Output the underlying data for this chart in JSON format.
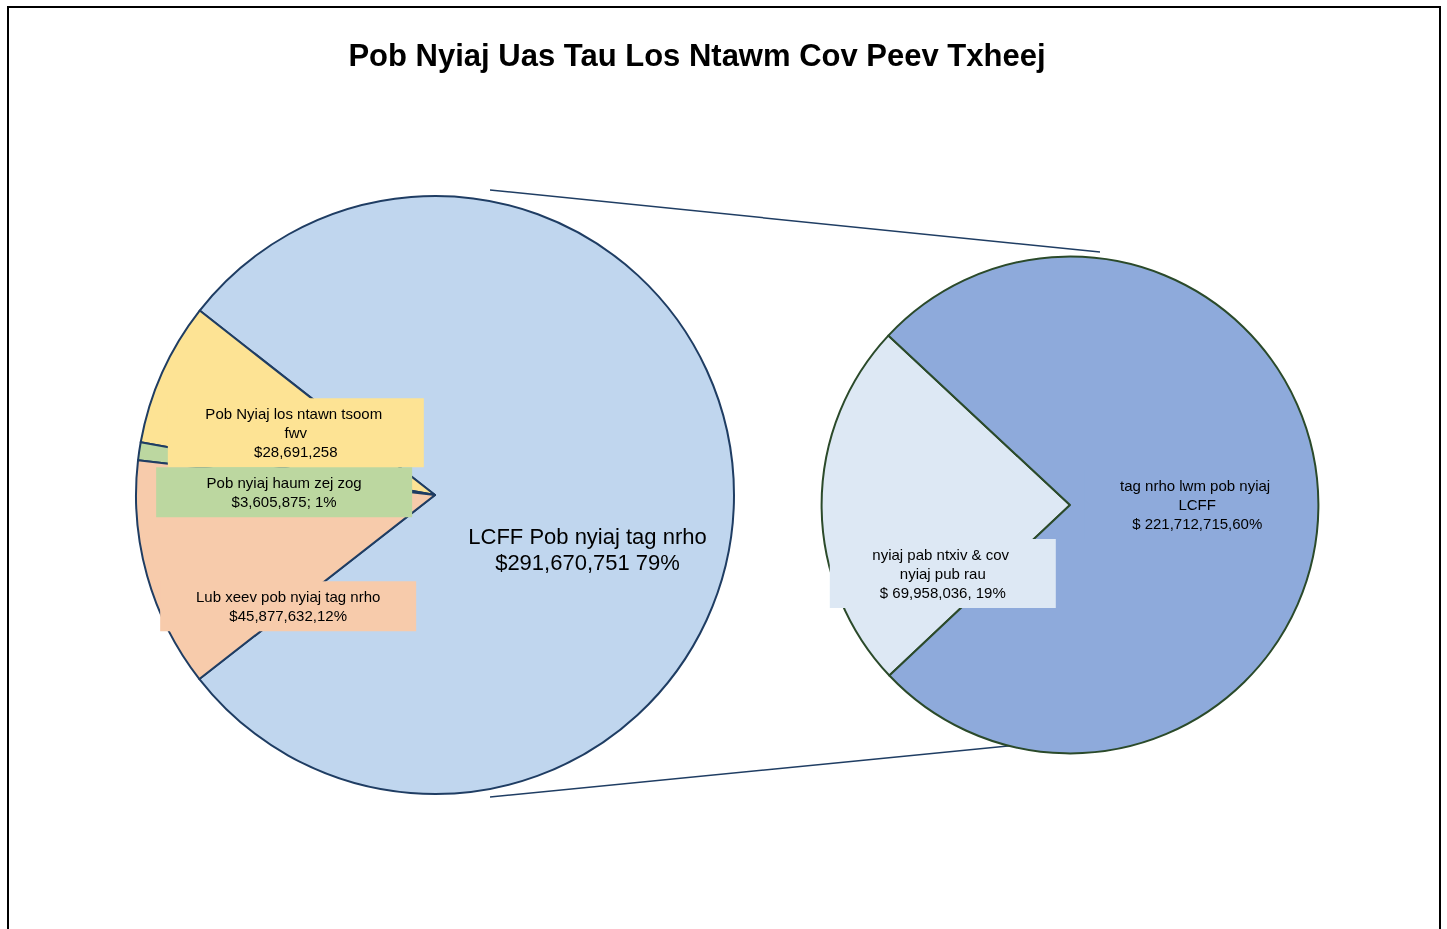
{
  "chart_data": [
    {
      "type": "pie",
      "title": "Pob Nyiaj Uas Tau Los Ntawm Cov Peev Txheej",
      "categories": [
        "LCFF Pob nyiaj tag nrho",
        "Pob Nyiaj los ntawn tsoom fwv",
        "Pob nyiaj haum zej zog",
        "Lub xeev pob nyiaj tag nrho"
      ],
      "value_labels": [
        "$291,670,751 79%",
        "$28,691,258",
        "$3,605,875; 1%",
        "$45,877,632,12%"
      ],
      "values": [
        291670751,
        28691258,
        3605875,
        45877632
      ],
      "colors": [
        "#c0d6ee",
        "#fde394",
        "#bcd7a0",
        "#f7cbab"
      ]
    },
    {
      "type": "pie",
      "categories": [
        "nyiaj pab ntxiv & cov nyiaj pub rau",
        "tag nrho lwm pob nyiaj LCFF"
      ],
      "value_labels": [
        "$ 69,958,036, 19%",
        "$ 221,712,715,60%"
      ],
      "values": [
        69958036,
        221712715
      ],
      "colors": [
        "#dde8f4",
        "#8eaadb"
      ]
    }
  ]
}
